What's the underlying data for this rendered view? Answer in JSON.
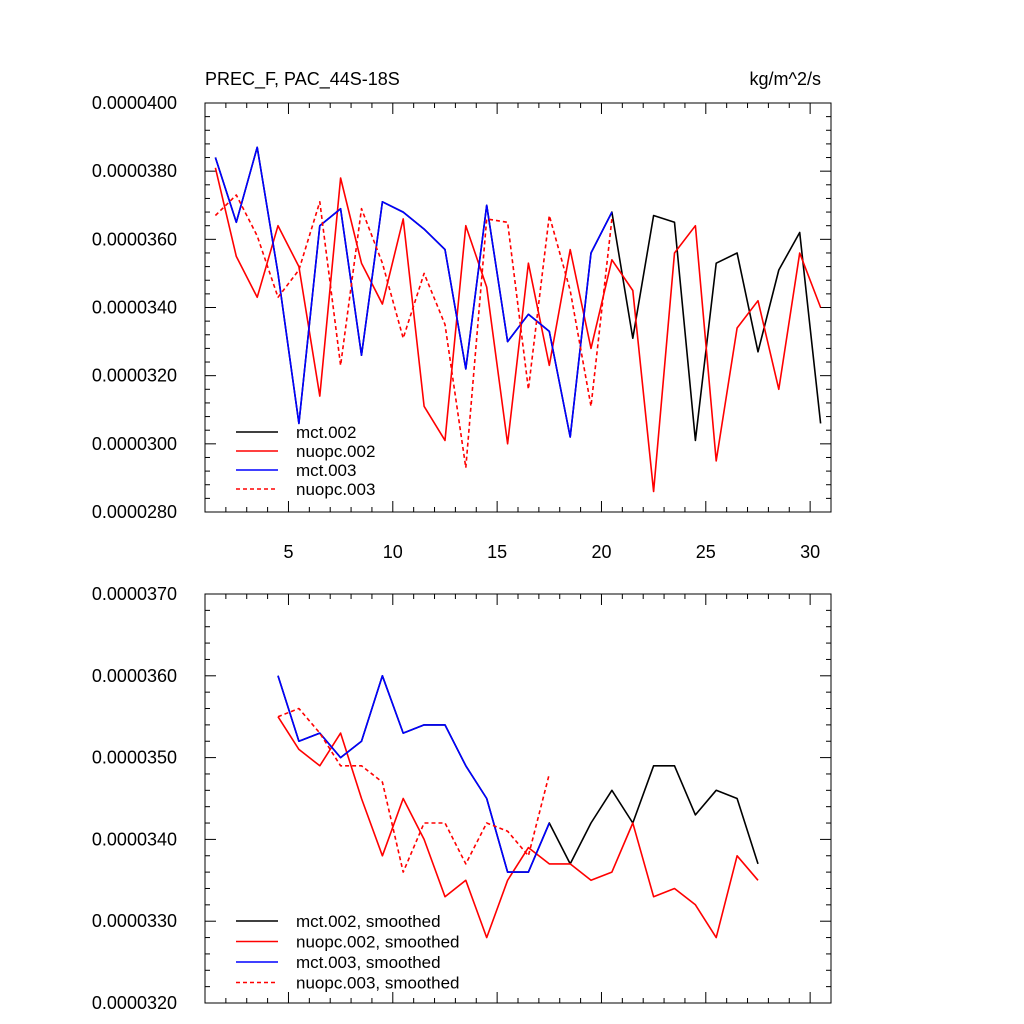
{
  "chart_data": [
    {
      "type": "line",
      "title": "PREC_F, PAC_44S-18S",
      "units": "kg/m^2/s",
      "xlim": [
        1,
        31
      ],
      "ylim": [
        2.8e-05,
        4e-05
      ],
      "xticks": [
        5,
        10,
        15,
        20,
        25,
        30
      ],
      "xtick_labels": [
        "5",
        "10",
        "15",
        "20",
        "25",
        "30"
      ],
      "yticks": [
        2.8e-05,
        3e-05,
        3.2e-05,
        3.4e-05,
        3.6e-05,
        3.8e-05,
        4e-05
      ],
      "ytick_labels": [
        "0.0000280",
        "0.0000300",
        "0.0000320",
        "0.0000340",
        "0.0000360",
        "0.0000380",
        "0.0000400"
      ],
      "legend_position": "bottom-left",
      "series": [
        {
          "name": "mct.002",
          "color": "#000000",
          "dash": "solid",
          "x": [
            1.5,
            2.5,
            3.5,
            4.5,
            5.5,
            6.5,
            7.5,
            8.5,
            9.5,
            10.5,
            11.5,
            12.5,
            13.5,
            14.5,
            15.5,
            16.5,
            17.5,
            18.5,
            19.5,
            20.5,
            21.5,
            22.5,
            23.5,
            24.5,
            25.5,
            26.5,
            27.5,
            28.5,
            29.5,
            30.5
          ],
          "values": [
            3.84e-05,
            3.65e-05,
            3.87e-05,
            3.5e-05,
            3.06e-05,
            3.64e-05,
            3.69e-05,
            3.26e-05,
            3.71e-05,
            3.68e-05,
            3.63e-05,
            3.57e-05,
            3.22e-05,
            3.7e-05,
            3.3e-05,
            3.38e-05,
            3.33e-05,
            3.02e-05,
            3.56e-05,
            3.68e-05,
            3.31e-05,
            3.67e-05,
            3.65e-05,
            3.01e-05,
            3.53e-05,
            3.56e-05,
            3.27e-05,
            3.51e-05,
            3.62e-05,
            3.06e-05
          ]
        },
        {
          "name": "nuopc.002",
          "color": "#ff0000",
          "dash": "solid",
          "x": [
            1.5,
            2.5,
            3.5,
            4.5,
            5.5,
            6.5,
            7.5,
            8.5,
            9.5,
            10.5,
            11.5,
            12.5,
            13.5,
            14.5,
            15.5,
            16.5,
            17.5,
            18.5,
            19.5,
            20.5,
            21.5,
            22.5,
            23.5,
            24.5,
            25.5,
            26.5,
            27.5,
            28.5,
            29.5,
            30.5
          ],
          "values": [
            3.81e-05,
            3.55e-05,
            3.43e-05,
            3.64e-05,
            3.52e-05,
            3.14e-05,
            3.78e-05,
            3.53e-05,
            3.41e-05,
            3.66e-05,
            3.11e-05,
            3.01e-05,
            3.64e-05,
            3.46e-05,
            3e-05,
            3.53e-05,
            3.23e-05,
            3.57e-05,
            3.28e-05,
            3.54e-05,
            3.45e-05,
            2.86e-05,
            3.56e-05,
            3.64e-05,
            2.95e-05,
            3.34e-05,
            3.42e-05,
            3.16e-05,
            3.56e-05,
            3.4e-05
          ]
        },
        {
          "name": "mct.003",
          "color": "#0000ff",
          "dash": "solid",
          "x": [
            1.5,
            2.5,
            3.5,
            4.5,
            5.5,
            6.5,
            7.5,
            8.5,
            9.5,
            10.5,
            11.5,
            12.5,
            13.5,
            14.5,
            15.5,
            16.5,
            17.5,
            18.5,
            19.5,
            20.5
          ],
          "values": [
            3.84e-05,
            3.65e-05,
            3.87e-05,
            3.5e-05,
            3.06e-05,
            3.64e-05,
            3.69e-05,
            3.26e-05,
            3.71e-05,
            3.68e-05,
            3.63e-05,
            3.57e-05,
            3.22e-05,
            3.7e-05,
            3.3e-05,
            3.38e-05,
            3.33e-05,
            3.02e-05,
            3.56e-05,
            3.68e-05
          ]
        },
        {
          "name": "nuopc.003",
          "color": "#ff0000",
          "dash": "dashed",
          "x": [
            1.5,
            2.5,
            3.5,
            4.5,
            5.5,
            6.5,
            7.5,
            8.5,
            9.5,
            10.5,
            11.5,
            12.5,
            13.5,
            14.5,
            15.5,
            16.5,
            17.5,
            18.5,
            19.5,
            20.5
          ],
          "values": [
            3.67e-05,
            3.73e-05,
            3.61e-05,
            3.43e-05,
            3.51e-05,
            3.71e-05,
            3.23e-05,
            3.69e-05,
            3.53e-05,
            3.31e-05,
            3.5e-05,
            3.35e-05,
            2.93e-05,
            3.66e-05,
            3.65e-05,
            3.16e-05,
            3.67e-05,
            3.45e-05,
            3.11e-05,
            3.66e-05
          ]
        }
      ]
    },
    {
      "type": "line",
      "title": "",
      "xlim": [
        1,
        31
      ],
      "ylim": [
        3.2e-05,
        3.7e-05
      ],
      "xticks": [
        5,
        10,
        15,
        20,
        25,
        30
      ],
      "xtick_labels": [],
      "yticks": [
        3.2e-05,
        3.3e-05,
        3.4e-05,
        3.5e-05,
        3.6e-05,
        3.7e-05
      ],
      "ytick_labels": [
        "0.0000320",
        "0.0000330",
        "0.0000340",
        "0.0000350",
        "0.0000360",
        "0.0000370"
      ],
      "legend_position": "bottom-left",
      "series": [
        {
          "name": "mct.002, smoothed",
          "color": "#000000",
          "dash": "solid",
          "x": [
            4.5,
            5.5,
            6.5,
            7.5,
            8.5,
            9.5,
            10.5,
            11.5,
            12.5,
            13.5,
            14.5,
            15.5,
            16.5,
            17.5,
            18.5,
            19.5,
            20.5,
            21.5,
            22.5,
            23.5,
            24.5,
            25.5,
            26.5,
            27.5
          ],
          "values": [
            3.6e-05,
            3.52e-05,
            3.53e-05,
            3.5e-05,
            3.52e-05,
            3.6e-05,
            3.53e-05,
            3.54e-05,
            3.54e-05,
            3.49e-05,
            3.45e-05,
            3.36e-05,
            3.36e-05,
            3.42e-05,
            3.37e-05,
            3.42e-05,
            3.46e-05,
            3.42e-05,
            3.49e-05,
            3.49e-05,
            3.43e-05,
            3.46e-05,
            3.45e-05,
            3.37e-05
          ]
        },
        {
          "name": "nuopc.002, smoothed",
          "color": "#ff0000",
          "dash": "solid",
          "x": [
            4.5,
            5.5,
            6.5,
            7.5,
            8.5,
            9.5,
            10.5,
            11.5,
            12.5,
            13.5,
            14.5,
            15.5,
            16.5,
            17.5,
            18.5,
            19.5,
            20.5,
            21.5,
            22.5,
            23.5,
            24.5,
            25.5,
            26.5,
            27.5
          ],
          "values": [
            3.55e-05,
            3.51e-05,
            3.49e-05,
            3.53e-05,
            3.45e-05,
            3.38e-05,
            3.45e-05,
            3.4e-05,
            3.33e-05,
            3.35e-05,
            3.28e-05,
            3.35e-05,
            3.39e-05,
            3.37e-05,
            3.37e-05,
            3.35e-05,
            3.36e-05,
            3.42e-05,
            3.33e-05,
            3.34e-05,
            3.32e-05,
            3.28e-05,
            3.38e-05,
            3.35e-05
          ]
        },
        {
          "name": "mct.003, smoothed",
          "color": "#0000ff",
          "dash": "solid",
          "x": [
            4.5,
            5.5,
            6.5,
            7.5,
            8.5,
            9.5,
            10.5,
            11.5,
            12.5,
            13.5,
            14.5,
            15.5,
            16.5,
            17.5
          ],
          "values": [
            3.6e-05,
            3.52e-05,
            3.53e-05,
            3.5e-05,
            3.52e-05,
            3.6e-05,
            3.53e-05,
            3.54e-05,
            3.54e-05,
            3.49e-05,
            3.45e-05,
            3.36e-05,
            3.36e-05,
            3.42e-05
          ]
        },
        {
          "name": "nuopc.003, smoothed",
          "color": "#ff0000",
          "dash": "dashed",
          "x": [
            4.5,
            5.5,
            6.5,
            7.5,
            8.5,
            9.5,
            10.5,
            11.5,
            12.5,
            13.5,
            14.5,
            15.5,
            16.5,
            17.5
          ],
          "values": [
            3.55e-05,
            3.56e-05,
            3.53e-05,
            3.49e-05,
            3.49e-05,
            3.47e-05,
            3.36e-05,
            3.42e-05,
            3.42e-05,
            3.37e-05,
            3.42e-05,
            3.41e-05,
            3.38e-05,
            3.48e-05
          ]
        }
      ]
    }
  ]
}
